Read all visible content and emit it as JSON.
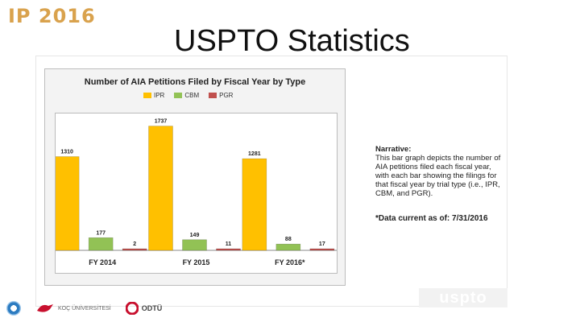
{
  "slide": {
    "brand": "IP 2016",
    "title": "USPTO Statistics"
  },
  "narrative": {
    "heading": "Narrative:",
    "body": "This bar graph depicts the number of AIA petitions filed each fiscal year, with each bar showing the filings for that fiscal year by trial type (i.e., IPR, CBM, and PGR).",
    "note": "*Data current as of: 7/31/2016"
  },
  "footer": {
    "uspto": "uspto",
    "logo_2": "KOÇ ÜNİVERSİTESİ",
    "logo_3": "ODTÜ"
  },
  "colors": {
    "ipr": "#ffc000",
    "cbm": "#92c255",
    "pgr": "#c0504d",
    "brand": "#d9a24d"
  },
  "chart_data": {
    "type": "bar",
    "title": "Number of AIA Petitions Filed by Fiscal Year by Type",
    "categories": [
      "FY 2014",
      "FY 2015",
      "FY 2016*"
    ],
    "series": [
      {
        "name": "IPR",
        "values": [
          1310,
          1737,
          1281
        ]
      },
      {
        "name": "CBM",
        "values": [
          177,
          149,
          88
        ]
      },
      {
        "name": "PGR",
        "values": [
          2,
          11,
          17
        ]
      }
    ],
    "xlabel": "",
    "ylabel": "",
    "ylim": [
      0,
      1800
    ],
    "grid": false,
    "legend": "top-center"
  }
}
